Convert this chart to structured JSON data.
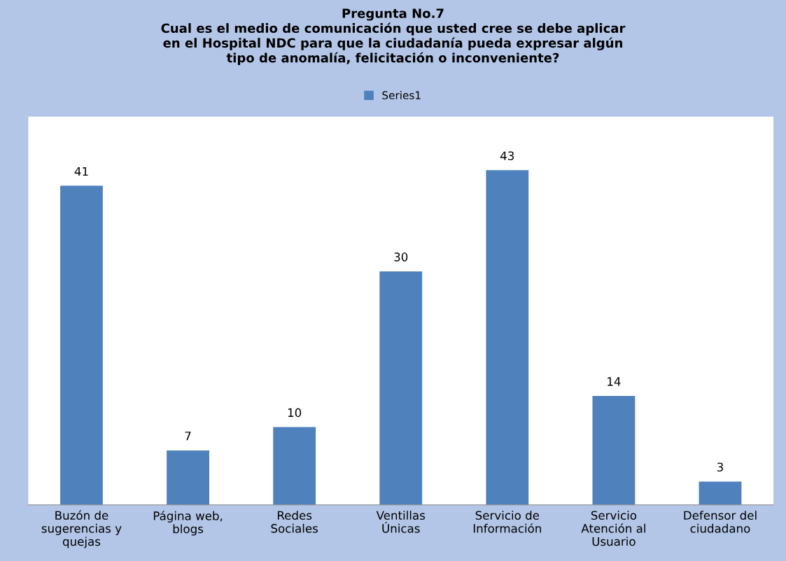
{
  "chart_data": {
    "type": "bar",
    "title": "Pregunta No.7\nCual es el medio de comunicación que usted cree se debe aplicar\nen el Hospital NDC para que la ciudadanía pueda expresar algún\ntipo de anomalía, felicitación o inconveniente?",
    "categories": [
      "Buzón de\nsugerencias y\nquejas",
      "Página web,\nblogs",
      "Redes\nSociales",
      "Ventillas\nÚnicas",
      "Servicio de\nInformación",
      "Servicio\nAtención al\nUsuario",
      "Defensor del\nciudadano"
    ],
    "series": [
      {
        "name": "Series1",
        "color": "#4f81bd",
        "values": [
          41,
          7,
          10,
          30,
          43,
          14,
          3
        ]
      }
    ],
    "data_labels": true,
    "legend": "top",
    "grid": false
  }
}
